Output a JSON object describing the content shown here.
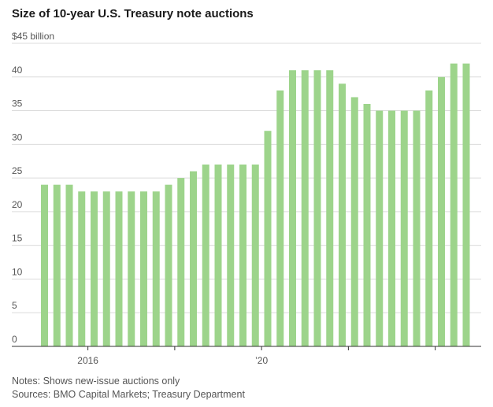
{
  "chart_data": {
    "type": "bar",
    "title": "Size of 10-year U.S. Treasury note auctions",
    "ylabel": "",
    "y_unit_label": "$45 billion",
    "xlabel": "",
    "ylim": [
      0,
      45
    ],
    "yticks": [
      0,
      5,
      10,
      15,
      20,
      25,
      30,
      35,
      40,
      45
    ],
    "ytick_labels": [
      "0",
      "5",
      "10",
      "15",
      "20",
      "25",
      "30",
      "35",
      "40",
      "$45 billion"
    ],
    "x_tick_labels": [
      {
        "label": "2016",
        "index": 3
      },
      {
        "label": "’20",
        "index": 17
      }
    ],
    "x_minor_ticks": [
      3,
      10,
      17,
      24,
      31
    ],
    "color": "#9dd48b",
    "grid": true,
    "values": [
      24,
      24,
      24,
      23,
      23,
      23,
      23,
      23,
      23,
      23,
      24,
      25,
      26,
      27,
      27,
      27,
      27,
      27,
      32,
      38,
      41,
      41,
      41,
      41,
      39,
      37,
      36,
      35,
      35,
      35,
      35,
      38,
      40,
      42,
      42
    ]
  },
  "notes": {
    "line1": "Notes: Shows new-issue auctions only",
    "line2": "Sources: BMO Capital Markets; Treasury Department"
  }
}
